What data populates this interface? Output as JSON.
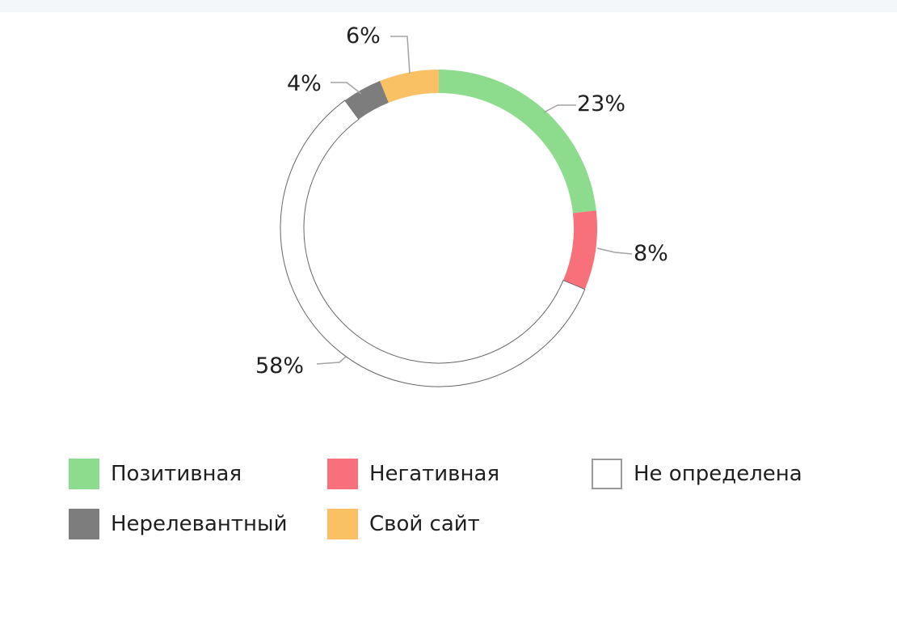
{
  "page": {
    "background": "#ffffff",
    "topbar_color": "#f3f7f9"
  },
  "chart_data": {
    "type": "pie",
    "subtype": "donut",
    "title": "",
    "start_angle_deg": 0,
    "direction": "clockwise",
    "legend_position": "bottom",
    "leader_line_color": "#a3a3a3",
    "series": [
      {
        "name": "Позитивная",
        "value_pct": 23,
        "label": "23%",
        "color": "#8DDC8D"
      },
      {
        "name": "Негативная",
        "value_pct": 8,
        "label": "8%",
        "color": "#F8707A"
      },
      {
        "name": "Не определена",
        "value_pct": 58,
        "label": "58%",
        "color": "#FFFFFF",
        "outline": "#666666",
        "legend_outline": "#999999"
      },
      {
        "name": "Нерелевантный",
        "value_pct": 4,
        "label": "4%",
        "color": "#7D7D7D"
      },
      {
        "name": "Свой сайт",
        "value_pct": 6,
        "label": "6%",
        "color": "#FAC064"
      }
    ]
  }
}
